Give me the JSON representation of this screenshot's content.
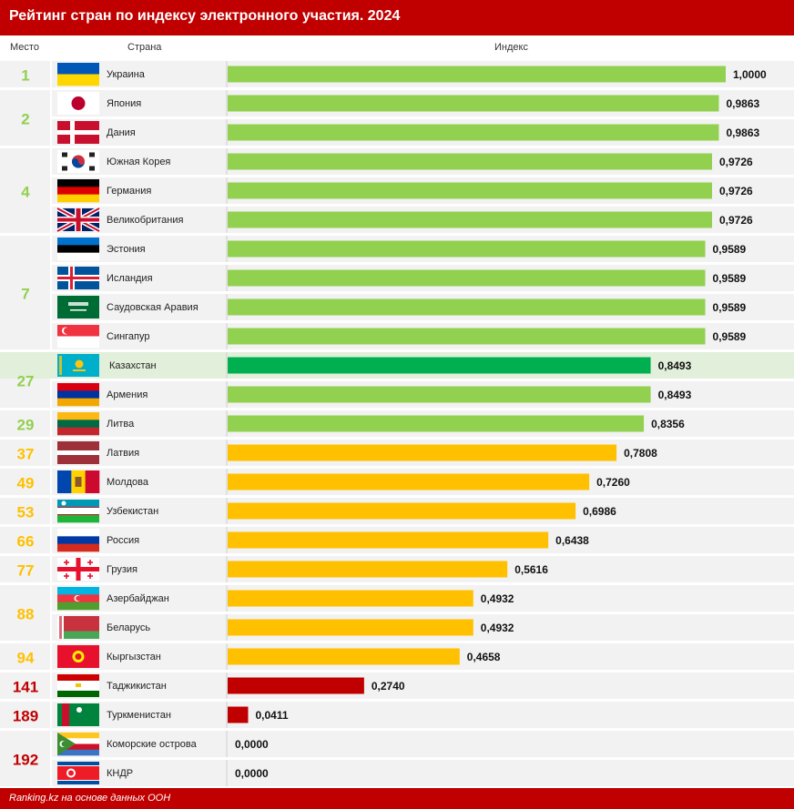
{
  "title": "Рейтинг стран по индексу электронного участия. 2024",
  "columns": {
    "place": "Место",
    "country": "Страна",
    "index": "Индекс"
  },
  "footer": "Ranking.kz на основе данных ООН",
  "colors": {
    "header": "#c00000",
    "green": "#92d050",
    "highlight": "#00b050",
    "yellow": "#ffc000",
    "red": "#c00000",
    "row_bg": "#f2f2f2",
    "highlight_row": "#e2efda"
  },
  "chart_data": {
    "type": "bar",
    "orientation": "horizontal",
    "title": "Рейтинг стран по индексу электронного участия. 2024",
    "xlim": [
      0,
      1
    ],
    "categories": [
      "Украина",
      "Япония",
      "Дания",
      "Южная Корея",
      "Германия",
      "Великобритания",
      "Эстония",
      "Исландия",
      "Саудовская Аравия",
      "Сингапур",
      "Казахстан",
      "Армения",
      "Литва",
      "Латвия",
      "Молдова",
      "Узбекистан",
      "Россия",
      "Грузия",
      "Азербайджан",
      "Беларусь",
      "Кыргызстан",
      "Таджикистан",
      "Туркменистан",
      "Коморские острова",
      "КНДР"
    ],
    "values": [
      1.0,
      0.9863,
      0.9863,
      0.9726,
      0.9726,
      0.9726,
      0.9589,
      0.9589,
      0.9589,
      0.9589,
      0.8493,
      0.8493,
      0.8356,
      0.7808,
      0.726,
      0.6986,
      0.6438,
      0.5616,
      0.4932,
      0.4932,
      0.4658,
      0.274,
      0.0411,
      0.0,
      0.0
    ],
    "value_labels": [
      "1,0000",
      "0,9863",
      "0,9863",
      "0,9726",
      "0,9726",
      "0,9726",
      "0,9589",
      "0,9589",
      "0,9589",
      "0,9589",
      "0,8493",
      "0,8493",
      "0,8356",
      "0,7808",
      "0,7260",
      "0,6986",
      "0,6438",
      "0,5616",
      "0,4932",
      "0,4932",
      "0,4658",
      "0,2740",
      "0,0411",
      "0,0000",
      "0,0000"
    ],
    "bar_colors": [
      "green",
      "green",
      "green",
      "green",
      "green",
      "green",
      "green",
      "green",
      "green",
      "green",
      "highlight",
      "green",
      "green",
      "yellow",
      "yellow",
      "yellow",
      "yellow",
      "yellow",
      "yellow",
      "yellow",
      "yellow",
      "red",
      "red",
      "red",
      "red"
    ],
    "flags": [
      "ukraine-flag",
      "japan-flag",
      "denmark-flag",
      "south-korea-flag",
      "germany-flag",
      "uk-flag",
      "estonia-flag",
      "iceland-flag",
      "saudi-arabia-flag",
      "singapore-flag",
      "kazakhstan-flag",
      "armenia-flag",
      "lithuania-flag",
      "latvia-flag",
      "moldova-flag",
      "uzbekistan-flag",
      "russia-flag",
      "georgia-flag",
      "azerbaijan-flag",
      "belarus-flag",
      "kyrgyzstan-flag",
      "tajikistan-flag",
      "turkmenistan-flag",
      "comoros-flag",
      "dprk-flag"
    ],
    "places": [
      {
        "label": "1",
        "first": 0,
        "last": 0,
        "color": "green"
      },
      {
        "label": "2",
        "first": 1,
        "last": 2,
        "color": "green"
      },
      {
        "label": "4",
        "first": 3,
        "last": 5,
        "color": "green"
      },
      {
        "label": "7",
        "first": 6,
        "last": 9,
        "color": "green"
      },
      {
        "label": "27",
        "first": 10,
        "last": 11,
        "color": "green"
      },
      {
        "label": "29",
        "first": 12,
        "last": 12,
        "color": "green"
      },
      {
        "label": "37",
        "first": 13,
        "last": 13,
        "color": "yellow"
      },
      {
        "label": "49",
        "first": 14,
        "last": 14,
        "color": "yellow"
      },
      {
        "label": "53",
        "first": 15,
        "last": 15,
        "color": "yellow"
      },
      {
        "label": "66",
        "first": 16,
        "last": 16,
        "color": "yellow"
      },
      {
        "label": "77",
        "first": 17,
        "last": 17,
        "color": "yellow"
      },
      {
        "label": "88",
        "first": 18,
        "last": 19,
        "color": "yellow"
      },
      {
        "label": "94",
        "first": 20,
        "last": 20,
        "color": "yellow"
      },
      {
        "label": "141",
        "first": 21,
        "last": 21,
        "color": "red"
      },
      {
        "label": "189",
        "first": 22,
        "last": 22,
        "color": "red"
      },
      {
        "label": "192",
        "first": 23,
        "last": 24,
        "color": "red"
      }
    ],
    "highlight_row": 10
  }
}
